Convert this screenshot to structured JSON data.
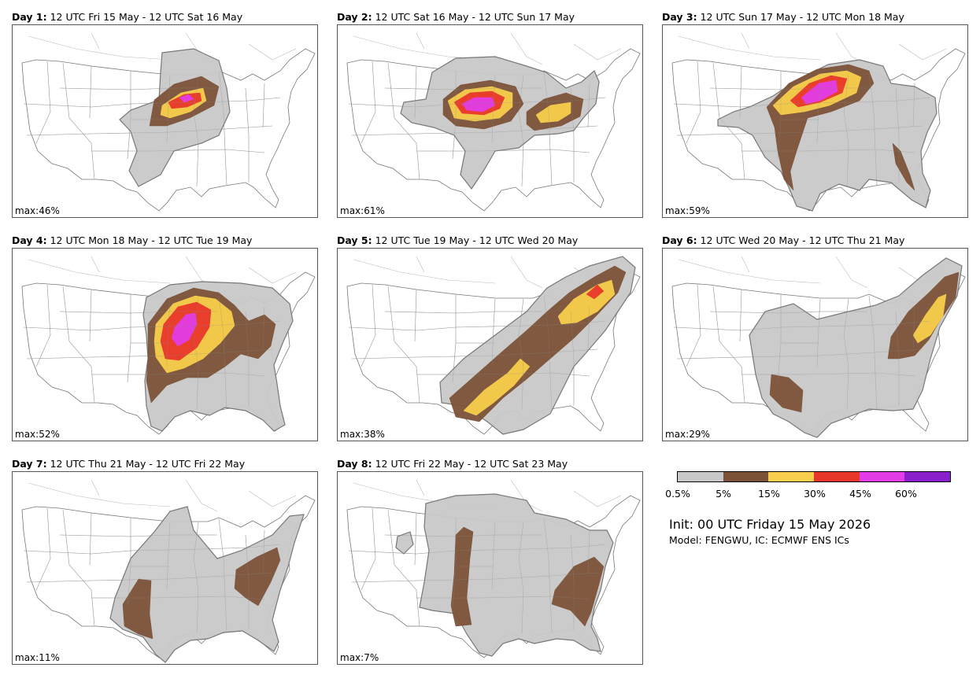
{
  "panels": [
    {
      "day": "Day 1:",
      "period": "12 UTC Fri 15 May - 12 UTC Sat 16 May",
      "max": "max:46%"
    },
    {
      "day": "Day 2:",
      "period": "12 UTC Sat 16 May - 12 UTC Sun 17 May",
      "max": "max:61%"
    },
    {
      "day": "Day 3:",
      "period": "12 UTC Sun 17 May - 12 UTC Mon 18 May",
      "max": "max:59%"
    },
    {
      "day": "Day 4:",
      "period": "12 UTC Mon 18 May - 12 UTC Tue 19 May",
      "max": "max:52%"
    },
    {
      "day": "Day 5:",
      "period": "12 UTC Tue 19 May - 12 UTC Wed 20 May",
      "max": "max:38%"
    },
    {
      "day": "Day 6:",
      "period": "12 UTC Wed 20 May - 12 UTC Thu 21 May",
      "max": "max:29%"
    },
    {
      "day": "Day 7:",
      "period": "12 UTC Thu 21 May - 12 UTC Fri 22 May",
      "max": "max:11%"
    },
    {
      "day": "Day 8:",
      "period": "12 UTC Fri 22 May - 12 UTC Sat 23 May",
      "max": "max:7%"
    }
  ],
  "legend": {
    "levels": [
      "0.5%",
      "5%",
      "15%",
      "30%",
      "45%",
      "60%"
    ],
    "colors": [
      "#c8c8c8",
      "#7b5238",
      "#f8cf4c",
      "#e8372a",
      "#e23de6",
      "#8a20cc"
    ]
  },
  "init": "Init: 00 UTC Friday 15 May 2026",
  "model": "Model: FENGWU, IC: ECMWF ENS ICs"
}
